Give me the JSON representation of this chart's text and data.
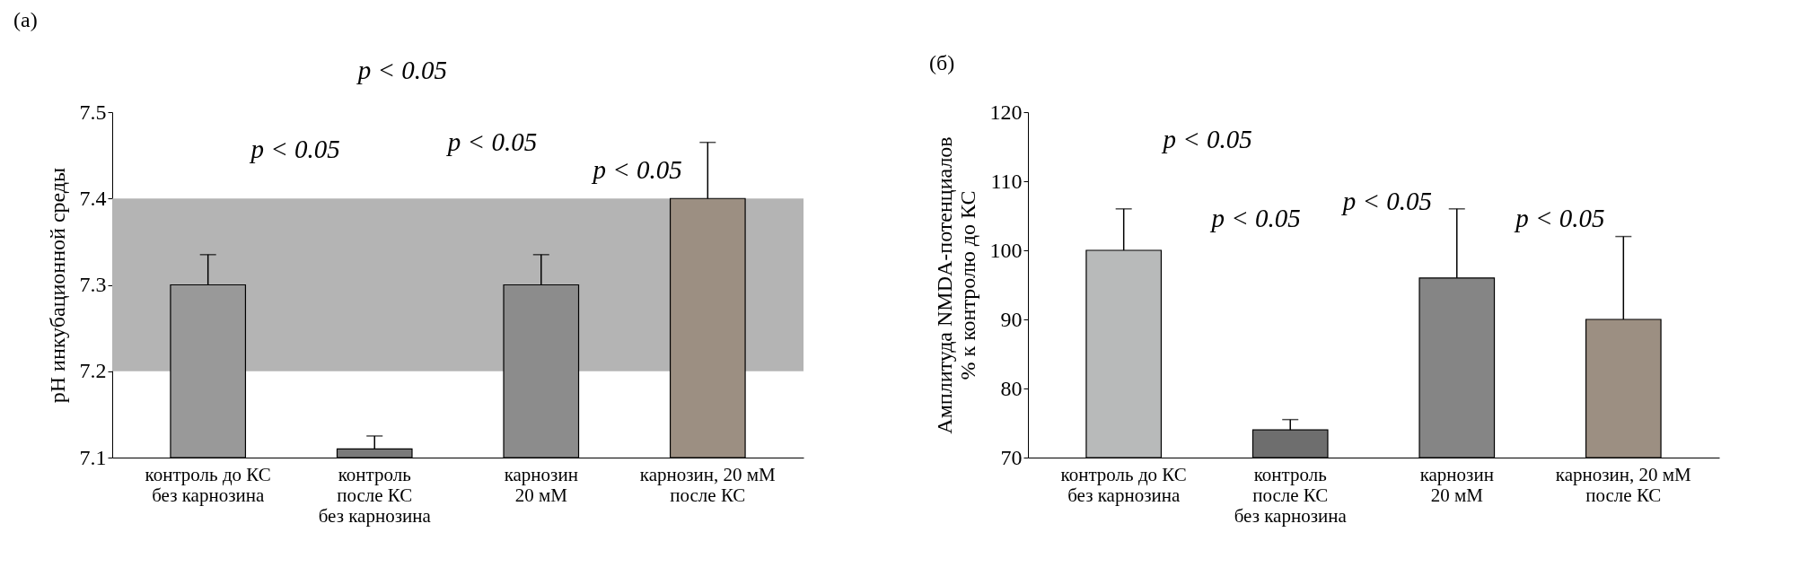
{
  "chart_data": [
    {
      "type": "bar",
      "title": "(a)",
      "ylabel": "pH инкубационной среды",
      "categories": [
        "контроль до КС\nбез карнозина",
        "контроль\nпосле КС\nбез карнозина",
        "карнозин\n20 мМ",
        "карнозин, 20 мМ\nпосле КС"
      ],
      "values": [
        7.3,
        7.11,
        7.3,
        7.4
      ],
      "colors": [
        "#999999",
        "#7a7a7a",
        "#8c8c8c",
        "#9c8f82"
      ],
      "errors": [
        [
          7.3,
          7.335
        ],
        [
          7.11,
          7.125
        ],
        [
          7.3,
          7.335
        ],
        [
          7.4,
          7.465
        ]
      ],
      "ylim": [
        7.1,
        7.5
      ],
      "yticks": [
        7.1,
        7.2,
        7.3,
        7.4,
        7.5
      ],
      "grid": false,
      "bands": [
        {
          "axis": "y",
          "from": 7.2,
          "to": 7.4,
          "color": "#b4b4b4"
        }
      ],
      "annotations": [
        "p < 0.05",
        "p < 0.05",
        "p < 0.05",
        "p < 0.05"
      ]
    },
    {
      "type": "bar",
      "title": "(б)",
      "ylabel": "Амплитуда NMDA-потенциалов\n% к контролю до КС",
      "categories": [
        "контроль до КС\nбез карнозина",
        "контроль\nпосле КС\nбез карнозина",
        "карнозин\n20 мМ",
        "карнозин, 20 мМ\nпосле КС"
      ],
      "values": [
        100,
        74,
        96,
        90
      ],
      "colors": [
        "#b8baba",
        "#6e6e6e",
        "#858585",
        "#9c8f82"
      ],
      "errors": [
        [
          100,
          106
        ],
        [
          74,
          75.5
        ],
        [
          96,
          106
        ],
        [
          90,
          102
        ]
      ],
      "ylim": [
        70,
        120
      ],
      "yticks": [
        70,
        80,
        90,
        100,
        110,
        120
      ],
      "grid": false,
      "annotations": [
        "p < 0.05",
        "p < 0.05",
        "p < 0.05",
        "p < 0.05"
      ]
    }
  ]
}
